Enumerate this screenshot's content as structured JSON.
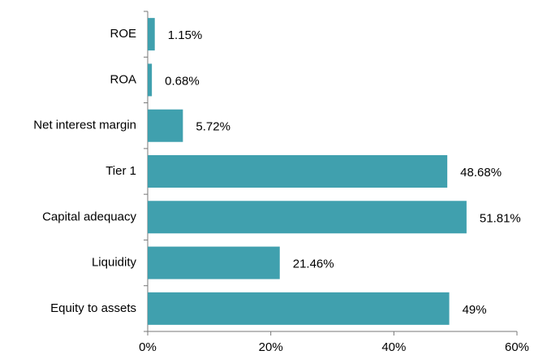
{
  "chart_data": {
    "type": "bar",
    "orientation": "horizontal",
    "color": "#40a0ae",
    "categories": [
      "ROE",
      "ROA",
      "Net interest margin",
      "Tier 1",
      "Capital adequacy",
      "Liquidity",
      "Equity to assets"
    ],
    "values": [
      1.15,
      0.68,
      5.72,
      48.68,
      51.81,
      21.46,
      49
    ],
    "value_labels": [
      "1.15%",
      "0.68%",
      "5.72%",
      "48.68%",
      "51.81%",
      "21.46%",
      "49%"
    ],
    "xlim": [
      0,
      60
    ],
    "xticks": [
      {
        "value": 0,
        "label": "0%"
      },
      {
        "value": 20,
        "label": "20%"
      },
      {
        "value": 40,
        "label": "40%"
      },
      {
        "value": 60,
        "label": "60%"
      }
    ]
  }
}
